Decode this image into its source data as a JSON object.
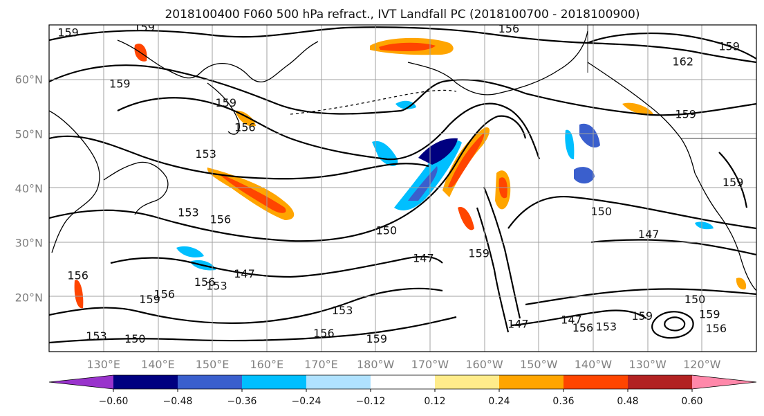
{
  "title": "2018100400 F060 500 hPa refract., IVT Landfall PC (2018100700 - 2018100900)",
  "lat_labels": [
    {
      "text": "60°N",
      "lat": 60
    },
    {
      "text": "50°N",
      "lat": 50
    },
    {
      "text": "40°N",
      "lat": 40
    },
    {
      "text": "30°N",
      "lat": 30
    },
    {
      "text": "20°N",
      "lat": 20
    }
  ],
  "lon_labels": [
    {
      "text": "130°E",
      "lon": 130
    },
    {
      "text": "140°E",
      "lon": 140
    },
    {
      "text": "150°E",
      "lon": 150
    },
    {
      "text": "160°E",
      "lon": 160
    },
    {
      "text": "170°E",
      "lon": 170
    },
    {
      "text": "180°W",
      "lon": 180
    },
    {
      "text": "170°W",
      "lon": 190
    },
    {
      "text": "160°W",
      "lon": 200
    },
    {
      "text": "150°W",
      "lon": 210
    },
    {
      "text": "140°W",
      "lon": 220
    },
    {
      "text": "130°W",
      "lon": 230
    },
    {
      "text": "120°W",
      "lon": 240
    }
  ],
  "extent": {
    "lon_min": 120,
    "lon_max": 250,
    "lat_min": 10,
    "lat_max": 70
  },
  "colorbar": {
    "colors": [
      "#9933cc",
      "#000080",
      "#3a5fcd",
      "#00bfff",
      "#b0e2ff",
      "#ffffff",
      "#ffec8b",
      "#ffa500",
      "#ff4500",
      "#b22222",
      "#ff88aa"
    ],
    "tick_labels": [
      "−0.60",
      "−0.48",
      "−0.36",
      "−0.24",
      "−0.12",
      "0.12",
      "0.24",
      "0.36",
      "0.48",
      "0.60"
    ]
  },
  "contour_labels": [
    {
      "text": "159",
      "lon": 123.5,
      "lat": 68.0
    },
    {
      "text": "159",
      "lon": 137.5,
      "lat": 69.0
    },
    {
      "text": "156",
      "lon": 204.5,
      "lat": 68.7
    },
    {
      "text": "162",
      "lon": 236.5,
      "lat": 62.7
    },
    {
      "text": "159",
      "lon": 237.0,
      "lat": 53.0
    },
    {
      "text": "159",
      "lon": 133.0,
      "lat": 58.6
    },
    {
      "text": "159",
      "lon": 152.5,
      "lat": 55.1
    },
    {
      "text": "156",
      "lon": 156.0,
      "lat": 50.6
    },
    {
      "text": "153",
      "lon": 148.8,
      "lat": 45.7
    },
    {
      "text": "153",
      "lon": 145.6,
      "lat": 35.0
    },
    {
      "text": "156",
      "lon": 151.5,
      "lat": 33.7
    },
    {
      "text": "150",
      "lon": 182.0,
      "lat": 31.7
    },
    {
      "text": "147",
      "lon": 188.8,
      "lat": 26.6
    },
    {
      "text": "159",
      "lon": 199.0,
      "lat": 27.5
    },
    {
      "text": "150",
      "lon": 221.5,
      "lat": 35.2
    },
    {
      "text": "147",
      "lon": 230.2,
      "lat": 31.0
    },
    {
      "text": "147",
      "lon": 155.9,
      "lat": 23.7
    },
    {
      "text": "156",
      "lon": 148.6,
      "lat": 22.2
    },
    {
      "text": "153",
      "lon": 150.8,
      "lat": 21.5
    },
    {
      "text": "159",
      "lon": 138.5,
      "lat": 19.0
    },
    {
      "text": "156",
      "lon": 141.2,
      "lat": 20.0
    },
    {
      "text": "156",
      "lon": 125.3,
      "lat": 23.4
    },
    {
      "text": "153",
      "lon": 173.9,
      "lat": 17.0
    },
    {
      "text": "156",
      "lon": 170.5,
      "lat": 12.8
    },
    {
      "text": "159",
      "lon": 180.2,
      "lat": 11.8
    },
    {
      "text": "153",
      "lon": 128.7,
      "lat": 12.3
    },
    {
      "text": "150",
      "lon": 135.8,
      "lat": 11.8
    },
    {
      "text": "147",
      "lon": 206.2,
      "lat": 14.5
    },
    {
      "text": "147",
      "lon": 216.0,
      "lat": 15.3
    },
    {
      "text": "156",
      "lon": 218.1,
      "lat": 13.8
    },
    {
      "text": "153",
      "lon": 222.4,
      "lat": 14.0
    },
    {
      "text": "150",
      "lon": 238.7,
      "lat": 19.0
    },
    {
      "text": "159",
      "lon": 229.0,
      "lat": 16.0
    },
    {
      "text": "156",
      "lon": 242.6,
      "lat": 13.7
    },
    {
      "text": "159",
      "lon": 241.4,
      "lat": 16.3
    },
    {
      "text": "159",
      "lon": 245.7,
      "lat": 40.5
    },
    {
      "text": "159",
      "lon": 245.0,
      "lat": 65.5
    }
  ]
}
